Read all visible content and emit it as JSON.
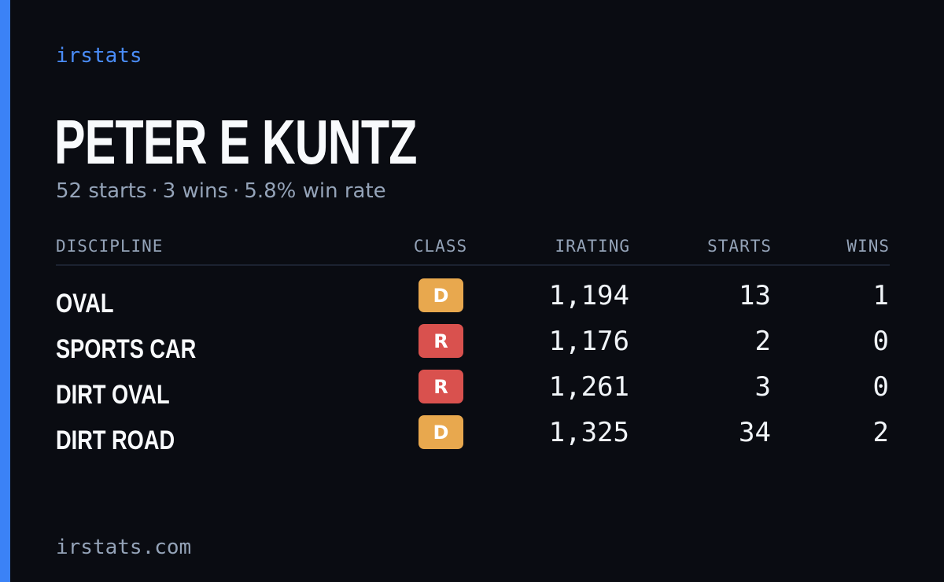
{
  "brand": "irstats",
  "driver": {
    "name": "PETER E KUNTZ"
  },
  "summary": {
    "starts": "52 starts",
    "wins": "3 wins",
    "win_rate": "5.8% win rate",
    "separator": "·"
  },
  "table": {
    "headers": {
      "discipline": "DISCIPLINE",
      "class": "CLASS",
      "irating": "IRATING",
      "starts": "STARTS",
      "wins": "WINS"
    },
    "rows": [
      {
        "discipline": "OVAL",
        "class": "D",
        "irating": "1,194",
        "starts": "13",
        "wins": "1"
      },
      {
        "discipline": "SPORTS CAR",
        "class": "R",
        "irating": "1,176",
        "starts": "2",
        "wins": "0"
      },
      {
        "discipline": "DIRT OVAL",
        "class": "R",
        "irating": "1,261",
        "starts": "3",
        "wins": "0"
      },
      {
        "discipline": "DIRT ROAD",
        "class": "D",
        "irating": "1,325",
        "starts": "34",
        "wins": "2"
      }
    ]
  },
  "colors": {
    "background": "#0a0c12",
    "accent": "#3b82f6",
    "class_D": "#e8a84e",
    "class_R": "#d9514e"
  },
  "footer": {
    "site": "irstats.com"
  }
}
